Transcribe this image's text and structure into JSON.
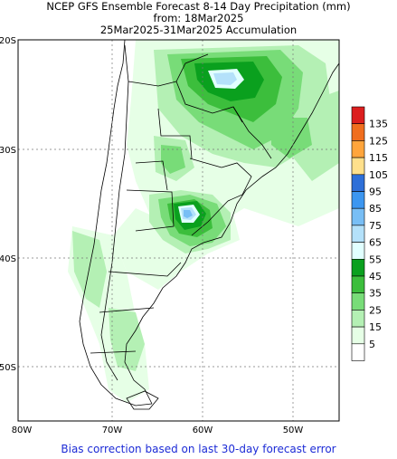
{
  "header": {
    "line1": "NCEP GFS Ensemble Forecast 8-14 Day Precipitation (mm)",
    "line2": "from: 18Mar2025",
    "line3": "25Mar2025-31Mar2025 Accumulation"
  },
  "axes": {
    "lat_labels": [
      "20S",
      "30S",
      "40S",
      "50S"
    ],
    "lon_labels": [
      "80W",
      "70W",
      "60W",
      "50W"
    ],
    "grid": true
  },
  "legend": {
    "levels": [
      {
        "label": "135",
        "color": "#dc1e1e"
      },
      {
        "label": "125",
        "color": "#f06e1e"
      },
      {
        "label": "115",
        "color": "#ffa53c"
      },
      {
        "label": "105",
        "color": "#ffe08c"
      },
      {
        "label": "95",
        "color": "#2e6fd8"
      },
      {
        "label": "85",
        "color": "#3c96f0"
      },
      {
        "label": "75",
        "color": "#78bef5"
      },
      {
        "label": "65",
        "color": "#b4e1fa"
      },
      {
        "label": "55",
        "color": "#e1ffff"
      },
      {
        "label": "45",
        "color": "#0aa01e"
      },
      {
        "label": "35",
        "color": "#3cbe3c"
      },
      {
        "label": "25",
        "color": "#78dc78"
      },
      {
        "label": "15",
        "color": "#b4f0b4"
      },
      {
        "label": "5",
        "color": "#e6ffe6"
      },
      {
        "label": "",
        "color": "#ffffff"
      }
    ]
  },
  "footer": {
    "text": "Bias correction based on last 30-day forecast error"
  }
}
